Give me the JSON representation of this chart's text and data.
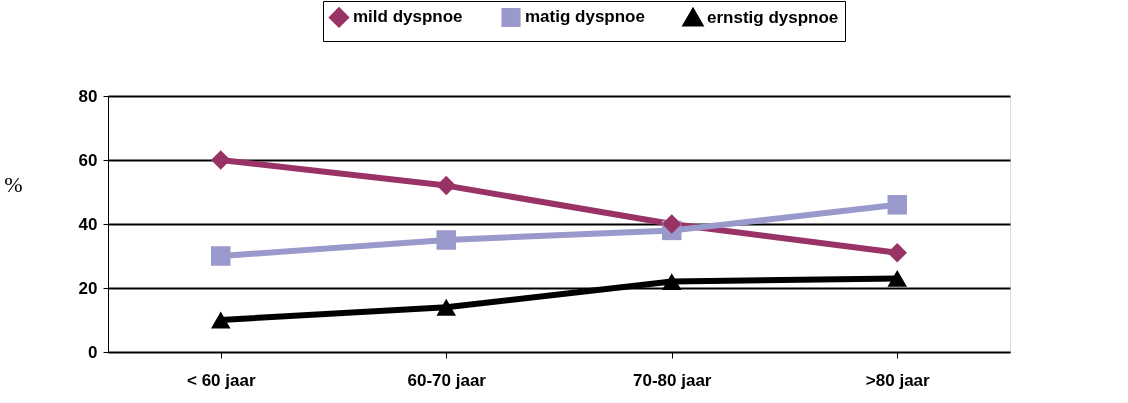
{
  "chart_data": {
    "type": "line",
    "ylabel": "%",
    "categories": [
      "< 60 jaar",
      "60-70 jaar",
      "70-80 jaar",
      ">80 jaar"
    ],
    "series": [
      {
        "name": "mild dyspnoe",
        "color": "#993366",
        "marker": "diamond",
        "values": [
          60,
          52,
          40,
          31
        ]
      },
      {
        "name": "matig dyspnoe",
        "color": "#9999cc",
        "marker": "square",
        "values": [
          30,
          35,
          38,
          46
        ]
      },
      {
        "name": "ernstig dyspnoe",
        "color": "#000000",
        "marker": "triangle",
        "values": [
          10,
          14,
          22,
          23
        ]
      }
    ],
    "ylim": [
      0,
      80
    ],
    "yticks": [
      0,
      20,
      40,
      60,
      80
    ],
    "grid": "y",
    "legend": "top right"
  }
}
